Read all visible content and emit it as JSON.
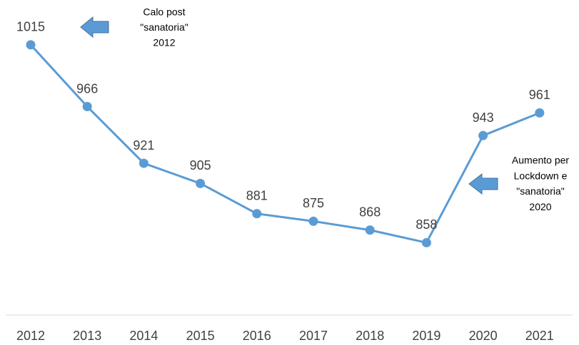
{
  "chart_data": {
    "type": "line",
    "categories": [
      "2012",
      "2013",
      "2014",
      "2015",
      "2016",
      "2017",
      "2018",
      "2019",
      "2020",
      "2021"
    ],
    "values": [
      1015,
      966,
      921,
      905,
      881,
      875,
      868,
      858,
      943,
      961
    ],
    "color": "#5b9bd5",
    "ylim": [
      800,
      1050
    ],
    "annotations": [
      {
        "lines": [
          "Calo post",
          "\"sanatoria\"",
          "2012"
        ]
      },
      {
        "lines": [
          "Aumento per",
          "Lockdown e",
          "\"sanatoria\"",
          "2020"
        ]
      }
    ]
  }
}
